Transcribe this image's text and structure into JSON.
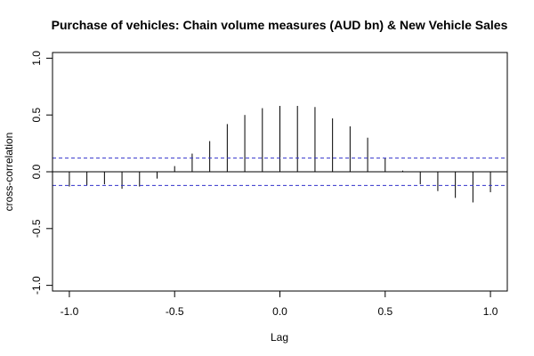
{
  "chart_data": {
    "type": "bar",
    "title": "Purchase of vehicles: Chain volume measures (AUD bn) & New Vehicle Sales",
    "xlabel": "Lag",
    "ylabel": "cross-correlation",
    "xlim": [
      -1.08,
      1.08
    ],
    "ylim": [
      -1.05,
      1.05
    ],
    "x_ticks": [
      -1.0,
      -0.5,
      0.0,
      0.5,
      1.0
    ],
    "x_tick_labels": [
      "-1.0",
      "-0.5",
      "0.0",
      "0.5",
      "1.0"
    ],
    "y_ticks": [
      -1.0,
      -0.5,
      0.0,
      0.5,
      1.0
    ],
    "y_tick_labels": [
      "-1.0",
      "-0.5",
      "0.0",
      "0.5",
      "1.0"
    ],
    "grid": false,
    "confidence_band": 0.12,
    "colors": {
      "bars": "#000000",
      "band": "#3333cc",
      "zero_line": "#000000"
    },
    "x": [
      -1.0,
      -0.9167,
      -0.8333,
      -0.75,
      -0.6667,
      -0.5833,
      -0.5,
      -0.4167,
      -0.3333,
      -0.25,
      -0.1667,
      -0.0833,
      0.0,
      0.0833,
      0.1667,
      0.25,
      0.3333,
      0.4167,
      0.5,
      0.5833,
      0.6667,
      0.75,
      0.8333,
      0.9167,
      1.0
    ],
    "values": [
      -0.13,
      -0.12,
      -0.11,
      -0.15,
      -0.13,
      -0.06,
      0.05,
      0.16,
      0.27,
      0.42,
      0.5,
      0.56,
      0.58,
      0.58,
      0.57,
      0.47,
      0.4,
      0.3,
      0.12,
      0.01,
      -0.11,
      -0.17,
      -0.23,
      -0.27,
      -0.18
    ]
  }
}
